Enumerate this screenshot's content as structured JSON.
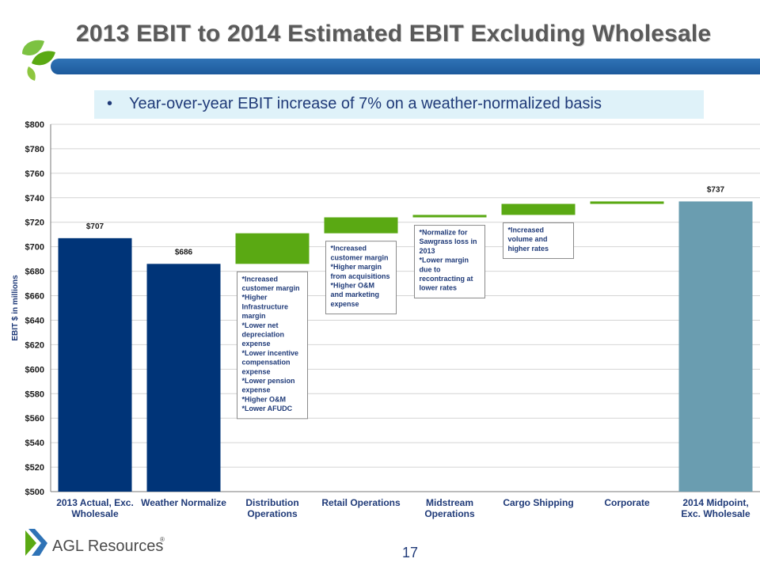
{
  "slide": {
    "title": "2013 EBIT to 2014 Estimated EBIT Excluding Wholesale",
    "bullet": "Year-over-year EBIT increase of 7% on a weather-normalized basis",
    "page_number": "17",
    "logo_text": "AGL Resources",
    "accent_color": "#2f73b6"
  },
  "chart_data": {
    "type": "bar",
    "subtype": "waterfall",
    "ylabel": "EBIT $ in millions",
    "ylim": [
      500,
      800
    ],
    "ytick_step": 20,
    "ytick_prefix": "$",
    "grid": true,
    "colors": {
      "total": "#003478",
      "delta": "#5aa913",
      "final": "#6a9db0"
    },
    "categories": [
      "2013 Actual, Exc.\nWholesale",
      "Weather Normalize",
      "Distribution\nOperations",
      "Retail Operations",
      "Midstream\nOperations",
      "Cargo Shipping",
      "Corporate",
      "2014 Midpoint,\nExc. Wholesale"
    ],
    "bars": [
      {
        "kind": "total",
        "value": 707,
        "label": "$707"
      },
      {
        "kind": "total",
        "value": 686,
        "label": "$686"
      },
      {
        "kind": "delta",
        "start": 686,
        "end": 711
      },
      {
        "kind": "delta",
        "start": 711,
        "end": 724
      },
      {
        "kind": "delta",
        "start": 724,
        "end": 726
      },
      {
        "kind": "delta",
        "start": 726,
        "end": 735
      },
      {
        "kind": "delta",
        "start": 735,
        "end": 737
      },
      {
        "kind": "final",
        "value": 737,
        "label": "$737"
      }
    ],
    "annotations": [
      {
        "category": 2,
        "lines": [
          "*Increased",
          "customer margin",
          "*Higher",
          "Infrastructure",
          "margin",
          "*Lower net",
          "depreciation",
          "expense",
          "*Lower incentive",
          "compensation",
          "expense",
          "*Lower pension",
          "expense",
          "*Higher O&M",
          "*Lower AFUDC"
        ]
      },
      {
        "category": 3,
        "lines": [
          "*Increased",
          "customer margin",
          "*Higher margin",
          "from acquisitions",
          "*Higher O&M",
          "and marketing",
          "expense"
        ]
      },
      {
        "category": 4,
        "lines": [
          "*Normalize for",
          "Sawgrass loss in",
          "2013",
          "*Lower margin",
          "due to",
          "recontracting at",
          "lower rates"
        ]
      },
      {
        "category": 5,
        "lines": [
          "*Increased",
          "volume and",
          "higher rates"
        ]
      }
    ]
  }
}
